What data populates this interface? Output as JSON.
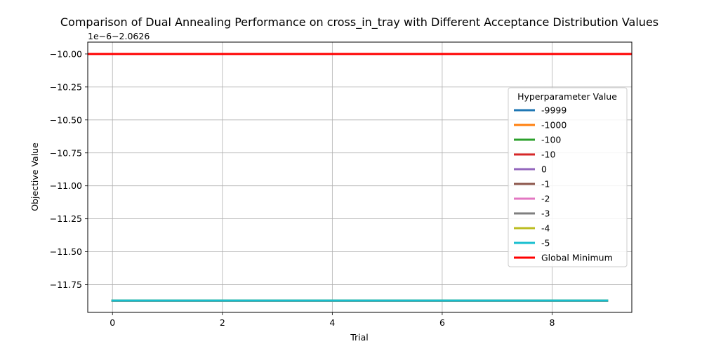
{
  "chart_data": {
    "type": "line",
    "title": "Comparison of Dual Annealing Performance on cross_in_tray with Different Acceptance Distribution Values",
    "xlabel": "Trial",
    "ylabel": "Objective Value",
    "offset_text": "1e−6−2.0626",
    "xlim": [
      -0.45,
      9.45
    ],
    "ylim": [
      -11.96,
      -9.91
    ],
    "xticks": [
      0,
      2,
      4,
      6,
      8
    ],
    "xtick_labels": [
      "0",
      "2",
      "4",
      "6",
      "8"
    ],
    "yticks": [
      -10.0,
      -10.25,
      -10.5,
      -10.75,
      -11.0,
      -11.25,
      -11.5,
      -11.75
    ],
    "ytick_labels": [
      "−10.00",
      "−10.25",
      "−10.50",
      "−10.75",
      "−11.00",
      "−11.25",
      "−11.50",
      "−11.75"
    ],
    "grid": true,
    "legend": {
      "title": "Hyperparameter Value",
      "placement": "right"
    },
    "x": [
      0,
      1,
      2,
      3,
      4,
      5,
      6,
      7,
      8,
      9
    ],
    "series": [
      {
        "name": "-9999",
        "color": "#1f77b4",
        "values": [
          -11.87,
          -11.87,
          -11.87,
          -11.87,
          -11.87,
          -11.87,
          -11.87,
          -11.87,
          -11.87,
          -11.87
        ]
      },
      {
        "name": "-1000",
        "color": "#ff7f0e",
        "values": [
          -11.87,
          -11.87,
          -11.87,
          -11.87,
          -11.87,
          -11.87,
          -11.87,
          -11.87,
          -11.87,
          -11.87
        ]
      },
      {
        "name": "-100",
        "color": "#2ca02c",
        "values": [
          -11.87,
          -11.87,
          -11.87,
          -11.87,
          -11.87,
          -11.87,
          -11.87,
          -11.87,
          -11.87,
          -11.87
        ]
      },
      {
        "name": "-10",
        "color": "#d62728",
        "values": [
          -11.87,
          -11.87,
          -11.87,
          -11.87,
          -11.87,
          -11.87,
          -11.87,
          -11.87,
          -11.87,
          -11.87
        ]
      },
      {
        "name": "0",
        "color": "#9467bd",
        "values": [
          -11.87,
          -11.87,
          -11.87,
          -11.87,
          -11.87,
          -11.87,
          -11.87,
          -11.87,
          -11.87,
          -11.87
        ]
      },
      {
        "name": "-1",
        "color": "#8c564b",
        "values": [
          -11.87,
          -11.87,
          -11.87,
          -11.87,
          -11.87,
          -11.87,
          -11.87,
          -11.87,
          -11.87,
          -11.87
        ]
      },
      {
        "name": "-2",
        "color": "#e377c2",
        "values": [
          -11.87,
          -11.87,
          -11.87,
          -11.87,
          -11.87,
          -11.87,
          -11.87,
          -11.87,
          -11.87,
          -11.87
        ]
      },
      {
        "name": "-3",
        "color": "#7f7f7f",
        "values": [
          -11.87,
          -11.87,
          -11.87,
          -11.87,
          -11.87,
          -11.87,
          -11.87,
          -11.87,
          -11.87,
          -11.87
        ]
      },
      {
        "name": "-4",
        "color": "#bcbd22",
        "values": [
          -11.87,
          -11.87,
          -11.87,
          -11.87,
          -11.87,
          -11.87,
          -11.87,
          -11.87,
          -11.87,
          -11.87
        ]
      },
      {
        "name": "-5",
        "color": "#17becf",
        "values": [
          -11.87,
          -11.87,
          -11.87,
          -11.87,
          -11.87,
          -11.87,
          -11.87,
          -11.87,
          -11.87,
          -11.87
        ]
      }
    ],
    "reference_line": {
      "name": "Global Minimum",
      "color": "#ff0000",
      "value": -10.0
    }
  }
}
